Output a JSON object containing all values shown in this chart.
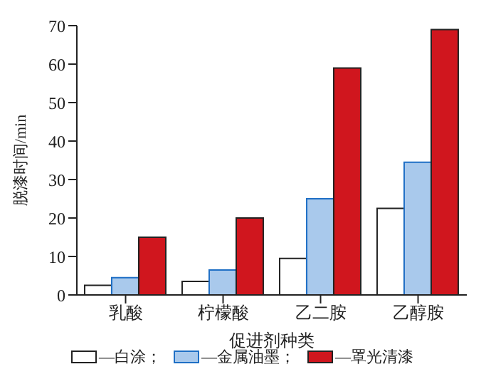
{
  "chart_data": {
    "type": "bar",
    "xlabel": "促进剂种类",
    "ylabel": "脱漆时间/min",
    "categories": [
      "乳酸",
      "柠檬酸",
      "乙二胺",
      "乙醇胺"
    ],
    "series": [
      {
        "name": "—白涂；",
        "color": "#ffffff",
        "values": [
          2.5,
          3.5,
          9.5,
          22.5
        ]
      },
      {
        "name": "—金属油墨；",
        "color": "#a9c9ec",
        "values": [
          4.5,
          6.5,
          25,
          34.5
        ]
      },
      {
        "name": "—罩光清漆",
        "color": "#d0161e",
        "values": [
          15,
          20,
          59,
          69
        ]
      }
    ],
    "ylim": [
      0,
      70
    ],
    "yticks": [
      0,
      10,
      20,
      30,
      40,
      50,
      60,
      70
    ],
    "grid": false,
    "legend": "bottom"
  }
}
